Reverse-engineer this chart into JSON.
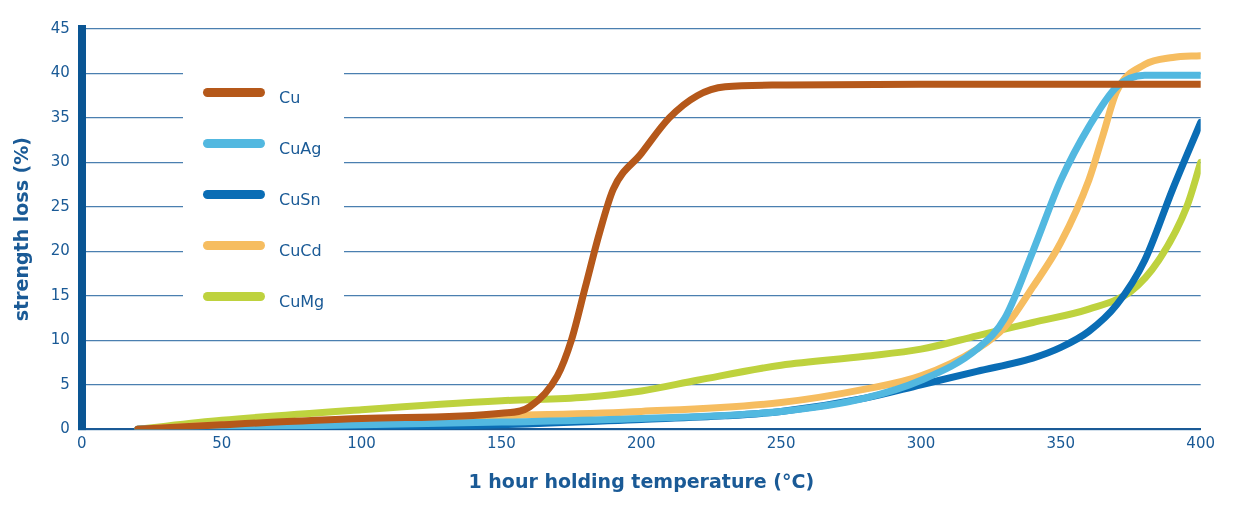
{
  "chart_data": {
    "type": "line",
    "xlabel": "1 hour holding temperature (°C)",
    "ylabel": "strength loss (%)",
    "xlim": [
      0,
      400
    ],
    "xticks": [
      0,
      50,
      100,
      150,
      200,
      250,
      300,
      350,
      400
    ],
    "ylim": [
      0,
      45
    ],
    "yticks": [
      0,
      5,
      10,
      15,
      20,
      25,
      30,
      35,
      40,
      45
    ],
    "grid": "y",
    "legend": "top left",
    "marker": "none",
    "line_style": "solid",
    "series": [
      {
        "name": "Cu",
        "color": "#b5581a",
        "x": [
          20,
          50,
          100,
          150,
          160,
          170,
          175,
          180,
          185,
          190,
          200,
          210,
          220,
          230,
          250,
          300,
          350,
          400
        ],
        "values": [
          0,
          0.5,
          1.2,
          1.8,
          2.5,
          6,
          10,
          16,
          22,
          27,
          31,
          35,
          37.5,
          38.5,
          38.7,
          38.8,
          38.8,
          38.8
        ]
      },
      {
        "name": "CuAg",
        "color": "#52b8e0",
        "x": [
          20,
          50,
          100,
          150,
          200,
          250,
          280,
          300,
          320,
          330,
          340,
          350,
          360,
          370,
          380,
          400
        ],
        "values": [
          0,
          0.2,
          0.5,
          0.8,
          1.2,
          2,
          3.5,
          5.5,
          9,
          12.5,
          20,
          28,
          34,
          38.5,
          39.8,
          39.8
        ]
      },
      {
        "name": "CuSn",
        "color": "#0a6db5",
        "x": [
          20,
          100,
          150,
          200,
          230,
          250,
          280,
          300,
          320,
          340,
          350,
          360,
          370,
          380,
          390,
          400
        ],
        "values": [
          0,
          0.2,
          0.5,
          1.1,
          1.5,
          2,
          3.5,
          5,
          6.5,
          8,
          9.2,
          11,
          14,
          19,
          27,
          34.5
        ]
      },
      {
        "name": "CuCd",
        "color": "#f6bd60",
        "x": [
          20,
          50,
          100,
          150,
          200,
          250,
          280,
          300,
          320,
          330,
          340,
          350,
          360,
          365,
          370,
          380,
          390,
          400
        ],
        "values": [
          0,
          0.5,
          1,
          1.5,
          2,
          3,
          4.5,
          6,
          9,
          11.5,
          16,
          21,
          28,
          33,
          38,
          41,
          41.8,
          42
        ]
      },
      {
        "name": "CuMg",
        "color": "#bed23e",
        "x": [
          20,
          50,
          100,
          150,
          180,
          200,
          220,
          250,
          280,
          300,
          320,
          340,
          360,
          375,
          385,
          395,
          400
        ],
        "values": [
          0,
          1,
          2.2,
          3.2,
          3.6,
          4.3,
          5.5,
          7.2,
          8.2,
          9,
          10.5,
          12,
          13.5,
          15.5,
          19,
          25,
          30
        ]
      }
    ]
  }
}
